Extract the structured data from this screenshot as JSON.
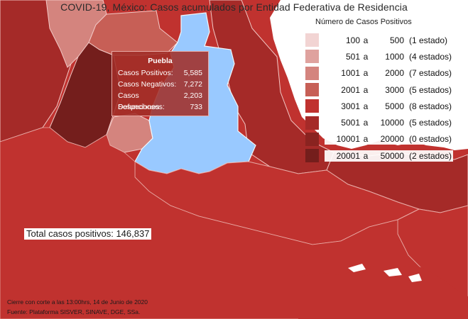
{
  "title": "COVID-19, México: Casos acumulados por Entidad Federativa de Residencia",
  "legend": {
    "title": "Número de Casos Positivos",
    "items": [
      {
        "from": "100",
        "sep": "a",
        "to": "500",
        "count": "(1 estado)",
        "color": "#f2d4d3"
      },
      {
        "from": "501",
        "sep": "a",
        "to": "1000",
        "count": "(4 estados)",
        "color": "#dfa29e"
      },
      {
        "from": "1001",
        "sep": "a",
        "to": "2000",
        "count": "(7 estados)",
        "color": "#d4847e"
      },
      {
        "from": "2001",
        "sep": "a",
        "to": "3000",
        "count": "(5 estados)",
        "color": "#c75f56"
      },
      {
        "from": "3001",
        "sep": "a",
        "to": "5000",
        "count": "(8 estados)",
        "color": "#c0322f"
      },
      {
        "from": "5001",
        "sep": "a",
        "to": "10000",
        "count": "(5 estados)",
        "color": "#a52a28"
      },
      {
        "from": "10001",
        "sep": "a",
        "to": "20000",
        "count": "(0 estados)",
        "color": "#8a2320"
      },
      {
        "from": "20001",
        "sep": "a",
        "to": "50000",
        "count": "(2 estados)",
        "color": "#741e1c"
      }
    ]
  },
  "tooltip": {
    "state": "Puebla",
    "rows": [
      {
        "label": "Casos Positivos:",
        "value": "5,585"
      },
      {
        "label": "Casos Negativos:",
        "value": "7,272"
      },
      {
        "label": "Casos Sospechosos:",
        "value": "2,203"
      },
      {
        "label": "Defunciones:",
        "value": "733"
      }
    ]
  },
  "total": "Total casos positivos: 146,837",
  "footnotes": {
    "cutoff": "Cierre con corte a las 13:00hrs, 14 de Junio de 2020",
    "source": "Fuente: Plataforma SISVER, SINAVE, DGE, SSa."
  },
  "colors": {
    "highlight": "#99c9ff",
    "tooltip_bg": "#a02d28"
  }
}
